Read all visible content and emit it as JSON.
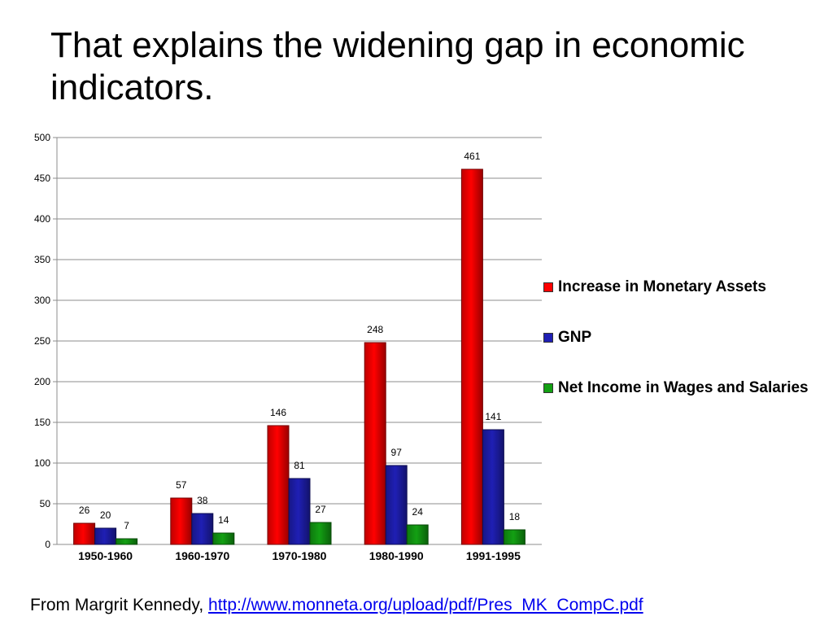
{
  "slide": {
    "title": "That explains the widening gap in economic indicators.",
    "source_prefix": "From Margrit Kennedy, ",
    "source_link": "http://www.monneta.org/upload/pdf/Pres_MK_CompC.pdf"
  },
  "chart_data": {
    "type": "bar",
    "categories": [
      "1950-1960",
      "1960-1970",
      "1970-1980",
      "1980-1990",
      "1991-1995"
    ],
    "series": [
      {
        "name": "Increase in Monetary Assets",
        "color": "#ff0000",
        "values": [
          26,
          57,
          146,
          248,
          461
        ]
      },
      {
        "name": "GNP",
        "color": "#1f1fb4",
        "values": [
          20,
          38,
          81,
          97,
          141
        ]
      },
      {
        "name": "Net Income in Wages and Salaries",
        "color": "#13a013",
        "values": [
          7,
          14,
          27,
          24,
          18
        ]
      }
    ],
    "ylim": [
      0,
      500
    ],
    "yticks": [
      0,
      50,
      100,
      150,
      200,
      250,
      300,
      350,
      400,
      450,
      500
    ],
    "grid": true,
    "legend_position": "right"
  }
}
